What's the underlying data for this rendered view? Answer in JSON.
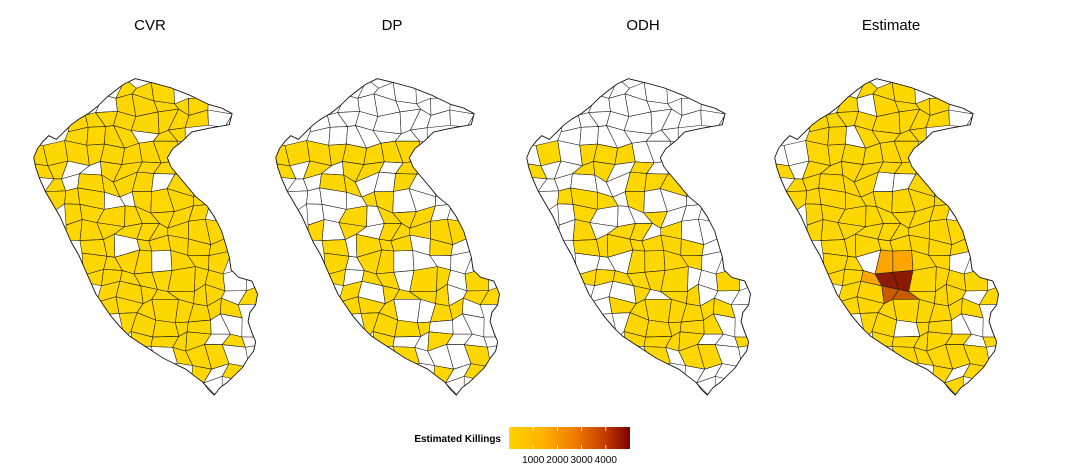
{
  "panels": [
    {
      "title": "CVR",
      "coverage": "wide"
    },
    {
      "title": "DP",
      "coverage": "partial"
    },
    {
      "title": "ODH",
      "coverage": "partial"
    },
    {
      "title": "Estimate",
      "coverage": "wide",
      "hotspot": true
    }
  ],
  "legend": {
    "title": "Estimated Killings",
    "ticks": [
      "1000",
      "2000",
      "3000",
      "4000"
    ],
    "range": [
      0,
      5000
    ],
    "tick_values": [
      1000,
      2000,
      3000,
      4000
    ],
    "colors": {
      "low": "#FFD400",
      "mid_low": "#FFAE00",
      "mid": "#F07A00",
      "mid_high": "#C33A00",
      "high": "#7A0000"
    }
  },
  "colors": {
    "filled": "#FFD700",
    "empty": "#FFFFFF",
    "border": "#1A1A1A",
    "hot1": "#FFA500",
    "hot2": "#C85A00",
    "hot3": "#8B1A00"
  }
}
